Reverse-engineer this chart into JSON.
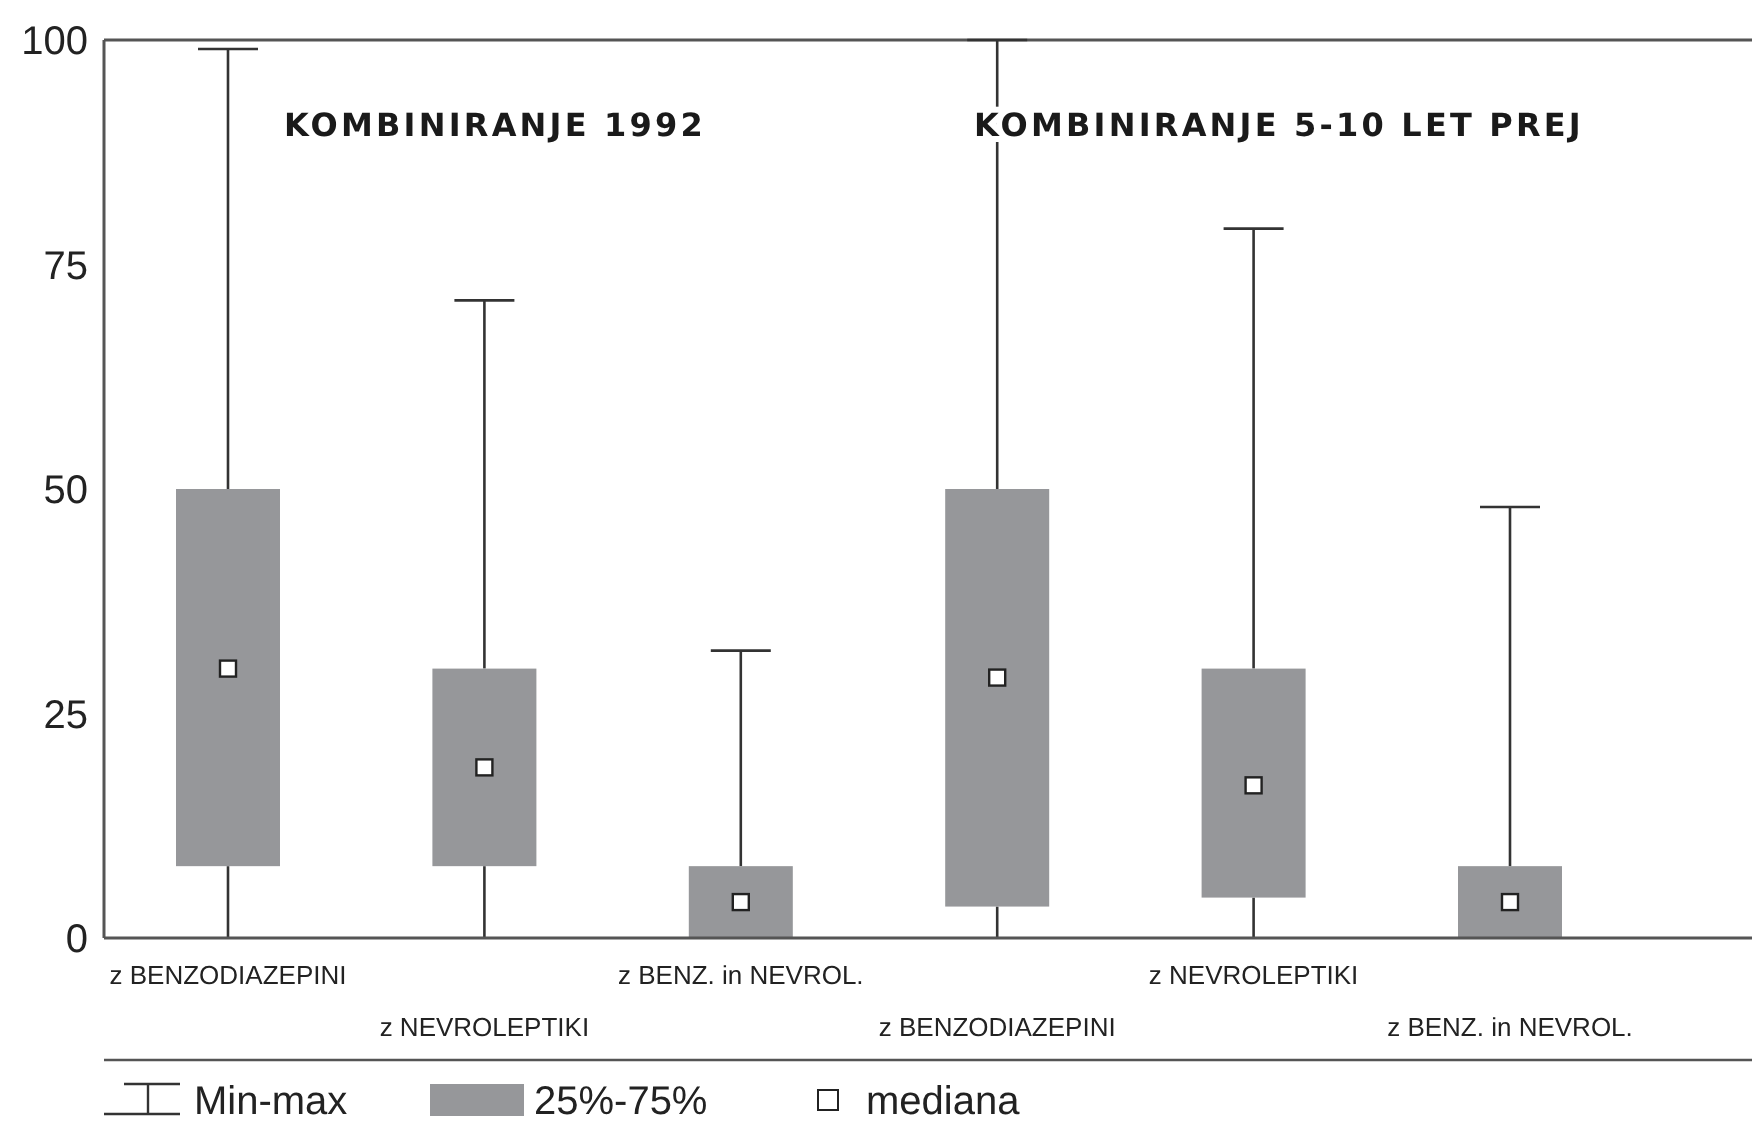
{
  "chart_data": {
    "type": "box",
    "categories": [
      "z BENZODIAZEPINI",
      "z NEVROLEPTIKI",
      "z BENZ. in NEVROL.",
      "z BENZODIAZEPINI",
      "z NEVROLEPTIKI",
      "z BENZ. in NEVROL."
    ],
    "boxes": [
      {
        "low": 0,
        "q1": 8,
        "median": 30,
        "q3": 50,
        "high": 99
      },
      {
        "low": 0,
        "q1": 8,
        "median": 19,
        "q3": 30,
        "high": 71
      },
      {
        "low": 0,
        "q1": 0,
        "median": 4,
        "q3": 8,
        "high": 32
      },
      {
        "low": 0,
        "q1": 3.5,
        "median": 29,
        "q3": 50,
        "high": 100
      },
      {
        "low": 0,
        "q1": 4.5,
        "median": 17,
        "q3": 30,
        "high": 79
      },
      {
        "low": 0,
        "q1": 0,
        "median": 4,
        "q3": 8,
        "high": 48
      }
    ],
    "color": "#96979a",
    "ylim": [
      0,
      100
    ],
    "yticks": [
      0,
      25,
      50,
      75,
      100
    ],
    "annotations": [
      "KOMBINIRANJE 1992",
      "KOMBINIRANJE 5-10 LET PREJ",
      "Min-max",
      "25%-75%",
      "mediana"
    ],
    "grid": false
  }
}
